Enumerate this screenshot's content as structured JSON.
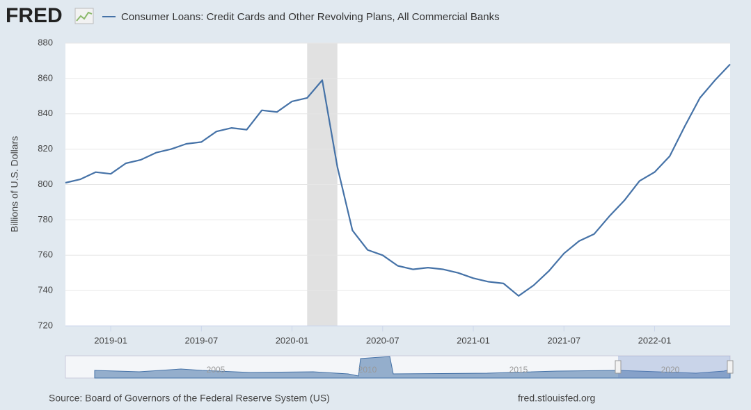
{
  "chart_data": {
    "type": "line",
    "logo": "FRED",
    "ylabel": "Billions of U.S. Dollars",
    "source": "Source: Board of Governors of the Federal Reserve System (US)",
    "url": "fred.stlouisfed.org",
    "x": [
      "2018-10",
      "2018-11",
      "2018-12",
      "2019-01",
      "2019-02",
      "2019-03",
      "2019-04",
      "2019-05",
      "2019-06",
      "2019-07",
      "2019-08",
      "2019-09",
      "2019-10",
      "2019-11",
      "2019-12",
      "2020-01",
      "2020-02",
      "2020-03",
      "2020-04",
      "2020-05",
      "2020-06",
      "2020-07",
      "2020-08",
      "2020-09",
      "2020-10",
      "2020-11",
      "2020-12",
      "2021-01",
      "2021-02",
      "2021-03",
      "2021-04",
      "2021-05",
      "2021-06",
      "2021-07",
      "2021-08",
      "2021-09",
      "2021-10",
      "2021-11",
      "2021-12",
      "2022-01",
      "2022-02",
      "2022-03",
      "2022-04",
      "2022-05",
      "2022-06"
    ],
    "series": [
      {
        "name": "Consumer Loans: Credit Cards and Other Revolving Plans, All Commercial Banks",
        "color": "#4572a7",
        "values": [
          801,
          803,
          807,
          806,
          812,
          814,
          818,
          820,
          823,
          824,
          830,
          832,
          831,
          842,
          841,
          847,
          849,
          859,
          810,
          774,
          763,
          760,
          754,
          752,
          753,
          752,
          750,
          747,
          745,
          744,
          737,
          743,
          751,
          761,
          768,
          772,
          782,
          791,
          802,
          807,
          816,
          833,
          849,
          859,
          868
        ]
      }
    ],
    "xlim": [
      "2018-10",
      "2022-06"
    ],
    "xticks": [
      "2019-01",
      "2019-07",
      "2020-01",
      "2020-07",
      "2021-01",
      "2021-07",
      "2022-01"
    ],
    "ylim": [
      720,
      880
    ],
    "yticks": [
      720,
      740,
      760,
      780,
      800,
      820,
      840,
      860,
      880
    ],
    "grid": true,
    "shaded_period": [
      "2020-02",
      "2020-04"
    ],
    "navigator_labels": [
      "2005",
      "2010",
      "2015",
      "2020"
    ]
  }
}
